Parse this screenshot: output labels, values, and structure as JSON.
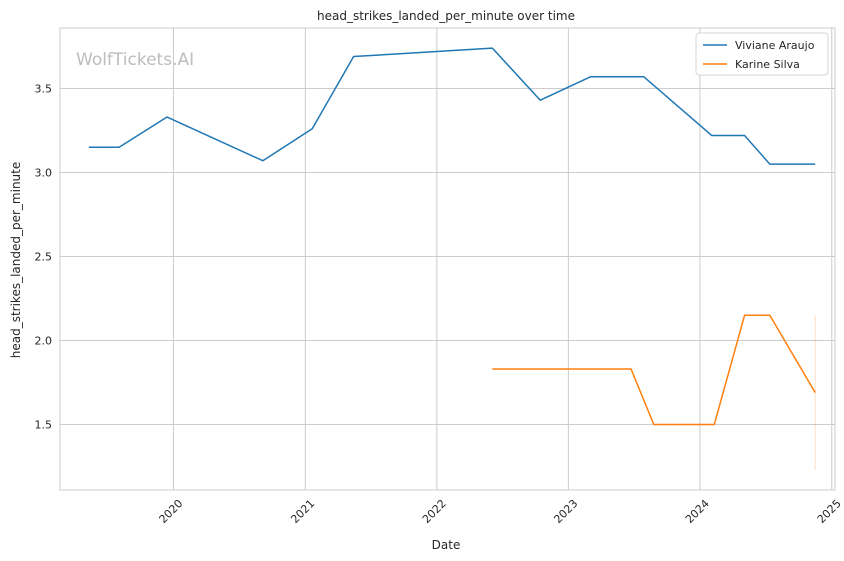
{
  "watermark": "WolfTickets.AI",
  "chart_data": {
    "type": "line",
    "title": "head_strikes_landed_per_minute over time",
    "xlabel": "Date",
    "ylabel": "head_strikes_landed_per_minute",
    "x_ticks": [
      "2020",
      "2021",
      "2022",
      "2023",
      "2024",
      "2025"
    ],
    "y_ticks": [
      "1.5",
      "2.0",
      "2.5",
      "3.0",
      "3.5"
    ],
    "xlim": [
      "2019-02-20",
      "2025-01-10"
    ],
    "ylim": [
      1.11,
      3.86
    ],
    "grid": true,
    "legend_position": "top-right",
    "series": [
      {
        "name": "Viviane Araujo",
        "color": "#1f77b4",
        "points": [
          {
            "date": "2019-05-11",
            "value": 3.15
          },
          {
            "date": "2019-08-03",
            "value": 3.15
          },
          {
            "date": "2019-12-14",
            "value": 3.33
          },
          {
            "date": "2020-09-05",
            "value": 3.07
          },
          {
            "date": "2021-01-20",
            "value": 3.26
          },
          {
            "date": "2021-05-15",
            "value": 3.69
          },
          {
            "date": "2022-06-04",
            "value": 3.74
          },
          {
            "date": "2022-10-15",
            "value": 3.43
          },
          {
            "date": "2023-03-04",
            "value": 3.57
          },
          {
            "date": "2023-07-29",
            "value": 3.57
          },
          {
            "date": "2024-02-03",
            "value": 3.22
          },
          {
            "date": "2024-05-04",
            "value": 3.22
          },
          {
            "date": "2024-07-13",
            "value": 3.05
          },
          {
            "date": "2024-11-16",
            "value": 3.05
          }
        ]
      },
      {
        "name": "Karine Silva",
        "color": "#ff7f0e",
        "points": [
          {
            "date": "2022-06-04",
            "value": 1.83
          },
          {
            "date": "2023-06-24",
            "value": 1.83
          },
          {
            "date": "2023-08-26",
            "value": 1.5
          },
          {
            "date": "2024-02-10",
            "value": 1.5
          },
          {
            "date": "2024-05-04",
            "value": 2.15
          },
          {
            "date": "2024-07-13",
            "value": 2.15
          },
          {
            "date": "2024-11-16",
            "value": 1.69
          }
        ],
        "error_band": {
          "date": "2024-11-16",
          "low": 1.23,
          "high": 2.15
        }
      }
    ]
  }
}
